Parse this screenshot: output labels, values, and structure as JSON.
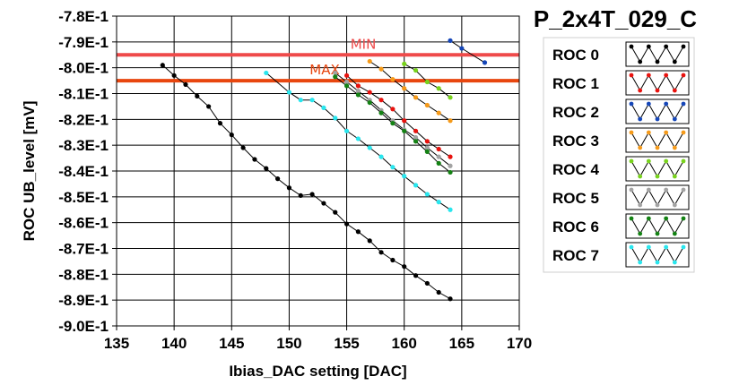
{
  "chart_data": {
    "type": "line",
    "title": "P_2x4T_029_C",
    "xlabel": "Ibias_DAC setting [DAC]",
    "ylabel": "ROC UB_level [mV]",
    "xlim": [
      135,
      170
    ],
    "ylim": [
      -0.9,
      -0.78
    ],
    "x_ticks": [
      135,
      140,
      145,
      150,
      155,
      160,
      165,
      170
    ],
    "x_tick_labels": [
      "135",
      "140",
      "145",
      "150",
      "155",
      "160",
      "165",
      "170"
    ],
    "y_ticks": [
      -0.78,
      -0.79,
      -0.8,
      -0.81,
      -0.82,
      -0.83,
      -0.84,
      -0.85,
      -0.86,
      -0.87,
      -0.88,
      -0.89,
      -0.9
    ],
    "y_tick_labels": [
      "-7.8E-1",
      "-7.9E-1",
      "-8.0E-1",
      "-8.1E-1",
      "-8.2E-1",
      "-8.3E-1",
      "-8.4E-1",
      "-8.5E-1",
      "-8.6E-1",
      "-8.7E-1",
      "-8.8E-1",
      "-8.9E-1",
      "-9.0E-1"
    ],
    "grid": true,
    "legend_position": "right",
    "limits": [
      {
        "name": "MIN",
        "value": -0.795,
        "color": "#ef4a4a"
      },
      {
        "name": "MAX",
        "value": -0.805,
        "color": "#e8460f"
      }
    ],
    "series": [
      {
        "name": "ROC 0",
        "color": "#000000",
        "x": [
          139,
          140,
          141,
          142,
          143,
          144,
          145,
          146,
          147,
          148,
          149,
          150,
          151,
          152,
          153,
          154,
          155,
          156,
          157,
          158,
          159,
          160,
          161,
          162,
          163,
          164
        ],
        "y": [
          -0.799,
          -0.803,
          -0.8065,
          -0.811,
          -0.815,
          -0.8215,
          -0.826,
          -0.831,
          -0.8355,
          -0.839,
          -0.843,
          -0.8465,
          -0.8495,
          -0.849,
          -0.8525,
          -0.856,
          -0.8605,
          -0.8635,
          -0.867,
          -0.8715,
          -0.8745,
          -0.877,
          -0.8805,
          -0.8835,
          -0.887,
          -0.8895
        ]
      },
      {
        "name": "ROC 1",
        "color": "#e8120e",
        "x": [
          155,
          156,
          157,
          158,
          159,
          160,
          161,
          162,
          163,
          164
        ],
        "y": [
          -0.803,
          -0.807,
          -0.8095,
          -0.8125,
          -0.816,
          -0.8205,
          -0.8245,
          -0.8285,
          -0.8315,
          -0.8345
        ]
      },
      {
        "name": "ROC 2",
        "color": "#1546b8",
        "x": [
          164,
          165,
          167
        ],
        "y": [
          -0.7895,
          -0.7925,
          -0.798
        ]
      },
      {
        "name": "ROC 3",
        "color": "#f59a1a",
        "x": [
          157,
          158,
          159,
          160,
          161,
          162,
          163,
          164
        ],
        "y": [
          -0.7975,
          -0.8005,
          -0.8045,
          -0.808,
          -0.8115,
          -0.8145,
          -0.8175,
          -0.8205
        ]
      },
      {
        "name": "ROC 4",
        "color": "#78d21c",
        "x": [
          160,
          161,
          162,
          163,
          164
        ],
        "y": [
          -0.7985,
          -0.801,
          -0.8055,
          -0.808,
          -0.8115
        ]
      },
      {
        "name": "ROC 5",
        "color": "#a3a3a3",
        "x": [
          154,
          155,
          156,
          157,
          158,
          159,
          160,
          161,
          162,
          163,
          164
        ],
        "y": [
          -0.802,
          -0.8055,
          -0.809,
          -0.8125,
          -0.8165,
          -0.8205,
          -0.824,
          -0.827,
          -0.831,
          -0.8345,
          -0.838
        ]
      },
      {
        "name": "ROC 6",
        "color": "#148214",
        "x": [
          154,
          155,
          156,
          157,
          158,
          159,
          160,
          161,
          162,
          163,
          164
        ],
        "y": [
          -0.8035,
          -0.807,
          -0.8105,
          -0.8135,
          -0.8175,
          -0.8215,
          -0.8245,
          -0.8285,
          -0.8325,
          -0.837,
          -0.8405
        ]
      },
      {
        "name": "ROC 7",
        "color": "#29e6ee",
        "x": [
          148,
          150,
          151,
          152,
          153,
          154,
          155,
          156,
          157,
          158,
          159,
          160,
          161,
          162,
          163,
          164
        ],
        "y": [
          -0.802,
          -0.8095,
          -0.8125,
          -0.8125,
          -0.8155,
          -0.8195,
          -0.8245,
          -0.8275,
          -0.831,
          -0.8345,
          -0.8385,
          -0.842,
          -0.8455,
          -0.849,
          -0.852,
          -0.855
        ]
      }
    ]
  }
}
